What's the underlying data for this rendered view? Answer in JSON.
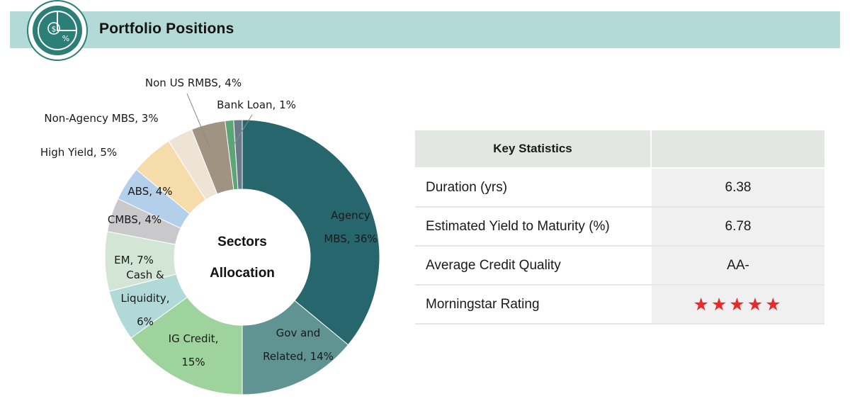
{
  "header": {
    "title": "Portfolio Positions",
    "icon": "pie-chart-percent-icon",
    "bar_color": "#b3dad7"
  },
  "chart_data": {
    "type": "pie",
    "variant": "donut",
    "center_label": [
      "Sectors",
      "Allocation"
    ],
    "slices": [
      {
        "name": "Agency MBS",
        "value": 36,
        "label_lines": [
          "Agency",
          "MBS, 36%"
        ],
        "color": "#27666c"
      },
      {
        "name": "Gov and Related",
        "value": 14,
        "label_lines": [
          "Gov and",
          "Related, 14%"
        ],
        "color": "#5f9492"
      },
      {
        "name": "IG Credit",
        "value": 15,
        "label_lines": [
          "IG Credit,",
          "15%"
        ],
        "color": "#9ed39d"
      },
      {
        "name": "Cash & Liquidity",
        "value": 6,
        "label_lines": [
          "Cash &",
          "Liquidity,",
          "6%"
        ],
        "color": "#b1d9d8"
      },
      {
        "name": "EM",
        "value": 7,
        "label_lines": [
          "EM, 7%"
        ],
        "color": "#d3e6d5"
      },
      {
        "name": "CMBS",
        "value": 4,
        "label_lines": [
          "CMBS, 4%"
        ],
        "color": "#c9c9cb"
      },
      {
        "name": "ABS",
        "value": 4,
        "label_lines": [
          "ABS, 4%"
        ],
        "color": "#b4cfea"
      },
      {
        "name": "High Yield",
        "value": 5,
        "label_lines": [
          "High Yield, 5%"
        ],
        "color": "#f6dcaa"
      },
      {
        "name": "Non-Agency MBS",
        "value": 3,
        "label_lines": [
          "Non-Agency MBS, 3%"
        ],
        "color": "#eee4d6"
      },
      {
        "name": "Non US RMBS",
        "value": 4,
        "label_lines": [
          "Non US RMBS, 4%"
        ],
        "color": "#a09382"
      },
      {
        "name": "Bank Loan",
        "value": 1,
        "label_lines": [
          "Bank Loan, 1%"
        ],
        "color": "#5ca576"
      },
      {
        "name": "Other",
        "value": 1,
        "label_lines": [],
        "color": "#6b7a88"
      }
    ]
  },
  "stats": {
    "header": "Key Statistics",
    "header_value": "",
    "rows": [
      {
        "label": "Duration (yrs)",
        "value": "6.38"
      },
      {
        "label": "Estimated Yield to Maturity (%)",
        "value": "6.78"
      },
      {
        "label": "Average Credit Quality",
        "value": "AA-"
      },
      {
        "label": "Morningstar Rating",
        "value": "★★★★★",
        "rating": 5
      }
    ]
  }
}
